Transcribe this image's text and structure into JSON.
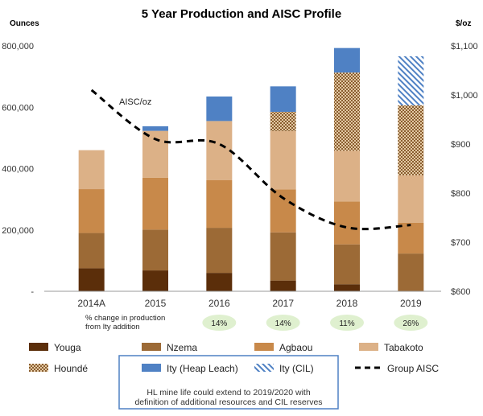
{
  "chart_data": {
    "type": "bar",
    "stacked": true,
    "title": "5 Year Production and AISC Profile",
    "ylabel": "Ounces",
    "y2label": "$/oz",
    "categories": [
      "2014A",
      "2015",
      "2016",
      "2017",
      "2018",
      "2019"
    ],
    "ylim": [
      0,
      800000
    ],
    "yticks": [
      0,
      200000,
      400000,
      600000,
      800000
    ],
    "ytick_labels": [
      "-",
      "200,000",
      "400,000",
      "600,000",
      "800,000"
    ],
    "y2lim": [
      600,
      1100
    ],
    "y2ticks": [
      600,
      700,
      800,
      900,
      1000,
      1100
    ],
    "y2tick_labels": [
      "$600",
      "$700",
      "$800",
      "$900",
      "$1,000",
      "$1,100"
    ],
    "series": [
      {
        "name": "Youga",
        "values": [
          75000,
          68000,
          60000,
          35000,
          23000,
          0
        ]
      },
      {
        "name": "Nzema",
        "values": [
          115000,
          133000,
          147000,
          157000,
          130000,
          123000
        ]
      },
      {
        "name": "Agbaou",
        "values": [
          143000,
          169000,
          155000,
          140000,
          140000,
          100000
        ]
      },
      {
        "name": "Tabakoto",
        "values": [
          127000,
          153000,
          193000,
          190000,
          165000,
          155000
        ]
      },
      {
        "name": "Houndé",
        "values": [
          0,
          0,
          0,
          63000,
          255000,
          228000
        ]
      },
      {
        "name": "Ity (Heap Leach)",
        "values": [
          0,
          15000,
          80000,
          83000,
          80000,
          0
        ]
      },
      {
        "name": "Ity (CIL)",
        "values": [
          0,
          0,
          0,
          0,
          0,
          160000
        ]
      }
    ],
    "line_series": {
      "name": "Group AISC",
      "axis": "right",
      "label": "AISC/oz",
      "values": [
        1010,
        910,
        900,
        790,
        730,
        735
      ]
    },
    "colors": {
      "Youga": "#5b2e0a",
      "Nzema": "#9c6a36",
      "Agbaou": "#c8894a",
      "Tabakoto": "#dcb187",
      "Houndé": "#a97d4a",
      "Ity (Heap Leach)": "#4f81c4",
      "Ity (CIL)": "#4f81c4",
      "Group AISC": "#000000"
    },
    "pct_change_label": "% change in production from Ity addition",
    "pct_change": {
      "2016": "14%",
      "2017": "14%",
      "2018": "11%",
      "2019": "26%"
    },
    "pct_change_badge_color": "#dff0cf",
    "hl_note": "HL mine life could extend to 2019/2020 with definition of additional resources and CIL reserves"
  }
}
